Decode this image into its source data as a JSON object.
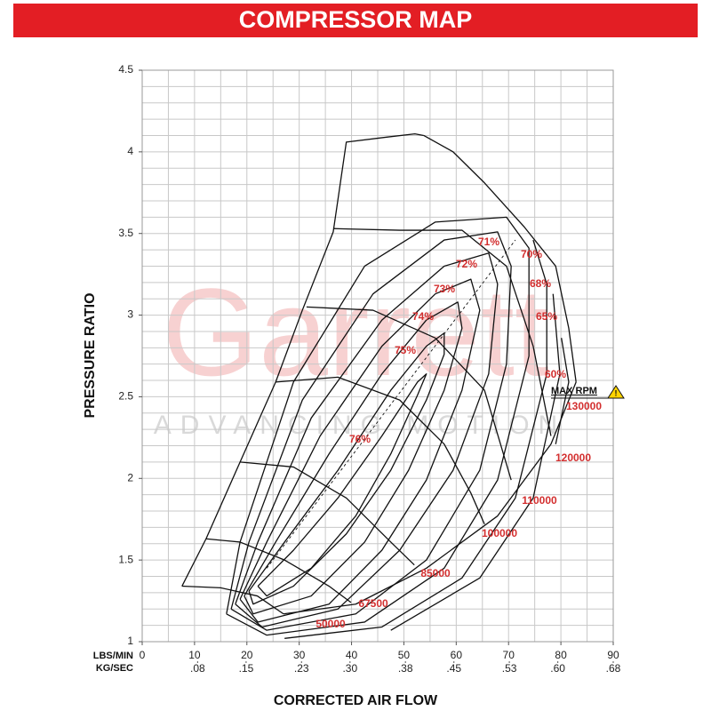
{
  "chart_data": {
    "type": "line",
    "title": "COMPRESSOR MAP",
    "ylabel": "PRESSURE RATIO",
    "xlabel": "CORRECTED AIR FLOW",
    "x_unit_label": "LBS/MIN",
    "x2_unit_label": "KG/SEC",
    "watermark": [
      "Garrett",
      "ADVANCING MOTION"
    ],
    "annotation": "MAX RPM",
    "xlim": [
      0,
      90
    ],
    "xticks": [
      0,
      10,
      20,
      30,
      40,
      50,
      60,
      70,
      80,
      90
    ],
    "x2lim": [
      0,
      0.68
    ],
    "x2ticks": [
      {
        "value": 0.08,
        "label": ".08"
      },
      {
        "value": 0.15,
        "label": ".15"
      },
      {
        "value": 0.23,
        "label": ".23"
      },
      {
        "value": 0.3,
        "label": ".30"
      },
      {
        "value": 0.38,
        "label": ".38"
      },
      {
        "value": 0.45,
        "label": ".45"
      },
      {
        "value": 0.53,
        "label": ".53"
      },
      {
        "value": 0.6,
        "label": ".60"
      },
      {
        "value": 0.68,
        "label": ".68"
      }
    ],
    "ylim": [
      1,
      4.5
    ],
    "yticks": [
      1,
      1.5,
      2,
      2.5,
      3,
      3.5,
      4,
      4.5
    ],
    "grid": true,
    "xgrid": [
      0,
      5,
      10,
      15,
      20,
      25,
      30,
      35,
      40,
      45,
      50,
      55,
      60,
      65,
      70,
      75,
      80,
      85,
      90
    ],
    "ygrid": [
      1,
      1.1,
      1.2,
      1.3,
      1.4,
      1.5,
      1.6,
      1.7,
      1.8,
      1.9,
      2,
      2.1,
      2.2,
      2.3,
      2.4,
      2.5,
      2.6,
      2.7,
      2.8,
      2.9,
      3,
      3.1,
      3.2,
      3.3,
      3.4,
      3.5,
      3.6,
      3.7,
      3.8,
      3.9,
      4,
      4.1,
      4.2,
      4.3,
      4.4,
      4.5
    ],
    "line_color": "#111111",
    "label_color": "#d32f2f",
    "series": [
      {
        "name": "50000",
        "x": [
          7.6,
          15,
          22,
          27
        ],
        "values": [
          1.34,
          1.33,
          1.28,
          1.17
        ]
      },
      {
        "name": "67500",
        "x": [
          12.2,
          18.7,
          27.2,
          35.7,
          39.9
        ],
        "values": [
          1.63,
          1.61,
          1.5,
          1.34,
          1.24
        ]
      },
      {
        "name": "85000",
        "x": [
          18.7,
          28.9,
          39,
          47.5,
          52
        ],
        "values": [
          2.1,
          2.07,
          1.88,
          1.61,
          1.47
        ]
      },
      {
        "name": "100000",
        "x": [
          25.5,
          37.4,
          49.2,
          57.7,
          62.8,
          65.4
        ],
        "values": [
          2.59,
          2.62,
          2.48,
          2.21,
          1.91,
          1.72
        ]
      },
      {
        "name": "110000",
        "x": [
          31.4,
          44.1,
          56,
          65.4,
          70.5
        ],
        "values": [
          3.05,
          3.03,
          2.86,
          2.54,
          1.99
        ]
      },
      {
        "name": "120000",
        "x": [
          36.5,
          49.2,
          61.1,
          69.6,
          74.7,
          78.1
        ],
        "values": [
          3.53,
          3.52,
          3.52,
          3.3,
          2.81,
          2.26
        ]
      },
      {
        "name": "130000",
        "x": [
          53.8,
          59.4,
          65.4,
          73,
          79,
          81.5,
          82.9
        ],
        "values": [
          4.1,
          4.0,
          3.81,
          3.54,
          3.3,
          2.92,
          2.59
        ]
      },
      {
        "name": "76%",
        "x": [
          22.1,
          28.9,
          37.4,
          45.8,
          52.6,
          54.3,
          52.6,
          47.5,
          40.8,
          32.3,
          23.8,
          22.1
        ],
        "values": [
          1.34,
          1.56,
          1.88,
          2.26,
          2.59,
          2.64,
          2.51,
          2.15,
          1.77,
          1.45,
          1.28,
          1.34
        ]
      },
      {
        "name": "75%",
        "x": [
          20.4,
          27.2,
          37.4,
          47.5,
          54.3,
          57.7,
          57.7,
          54.3,
          47.5,
          39,
          28.9,
          21.2,
          20.4
        ],
        "values": [
          1.31,
          1.61,
          2.05,
          2.54,
          2.81,
          2.89,
          2.76,
          2.48,
          2.05,
          1.66,
          1.34,
          1.23,
          1.31
        ]
      },
      {
        "name": "74%",
        "x": [
          19.5,
          25.5,
          35.7,
          45.8,
          54.3,
          60.3,
          61.1,
          57.7,
          50.9,
          42.5,
          32.3,
          21.2,
          19.5
        ],
        "values": [
          1.28,
          1.61,
          2.15,
          2.64,
          2.97,
          3.08,
          2.92,
          2.54,
          2.05,
          1.61,
          1.28,
          1.17,
          1.28
        ]
      },
      {
        "name": "73%",
        "x": [
          18.7,
          23.8,
          34,
          45.8,
          56,
          62.8,
          64.5,
          61.1,
          54.3,
          45.8,
          35.7,
          22.1,
          18.7
        ],
        "values": [
          1.26,
          1.61,
          2.26,
          2.81,
          3.13,
          3.22,
          3.03,
          2.54,
          1.99,
          1.56,
          1.23,
          1.12,
          1.26
        ]
      },
      {
        "name": "72%",
        "x": [
          17.8,
          22.1,
          32.3,
          45.8,
          57.7,
          66.2,
          67.9,
          66.2,
          59.4,
          49.2,
          37.4,
          22.9,
          17.8
        ],
        "values": [
          1.23,
          1.61,
          2.37,
          2.97,
          3.3,
          3.38,
          3.19,
          2.64,
          2.05,
          1.56,
          1.2,
          1.09,
          1.23
        ]
      },
      {
        "name": "71%",
        "x": [
          17,
          20.4,
          30.6,
          44.1,
          57.7,
          67.9,
          70.5,
          69.6,
          64.5,
          54.3,
          40.8,
          23.8,
          17
        ],
        "values": [
          1.2,
          1.61,
          2.48,
          3.13,
          3.46,
          3.51,
          3.3,
          2.7,
          2.05,
          1.5,
          1.17,
          1.07,
          1.2
        ]
      },
      {
        "name": "70%",
        "x": [
          16.1,
          18.7,
          28.9,
          42.5,
          56,
          69.6,
          73.9,
          73.9,
          67.9,
          57.7,
          42.5,
          23.8,
          16.1
        ],
        "values": [
          1.17,
          1.61,
          2.59,
          3.3,
          3.57,
          3.6,
          3.41,
          2.75,
          1.99,
          1.45,
          1.12,
          1.04,
          1.17
        ]
      },
      {
        "name": "68%",
        "x": [
          74.7,
          77.3,
          77.3,
          71.3,
          61.1,
          45.8,
          27.2
        ],
        "values": [
          3.46,
          3.19,
          2.64,
          1.88,
          1.39,
          1.09,
          1.02
        ]
      },
      {
        "name": "65%",
        "x": [
          78.5,
          79.8,
          74.7,
          64.5,
          47.5
        ],
        "values": [
          3.13,
          2.64,
          1.88,
          1.39,
          1.07
        ]
      },
      {
        "name": "60%",
        "x": [
          80.1,
          81.5,
          79
        ],
        "values": [
          2.86,
          2.59,
          2.21
        ]
      },
      {
        "x": [
          7.6,
          12.2,
          18.7,
          25.5,
          30.6,
          36.5,
          39,
          46.7,
          52.1,
          53.8
        ],
        "values": [
          1.34,
          1.63,
          2.1,
          2.59,
          3.03,
          3.51,
          4.06,
          4.09,
          4.11,
          4.1
        ]
      },
      {
        "x": [
          27,
          40.8,
          54.3,
          67.9,
          78.1,
          82.9
        ],
        "values": [
          1.17,
          1.23,
          1.45,
          1.77,
          2.21,
          2.59
        ]
      },
      {
        "x": [
          23.8,
          71.3
        ],
        "values": [
          1.45,
          3.46
        ],
        "dash": true
      }
    ]
  }
}
